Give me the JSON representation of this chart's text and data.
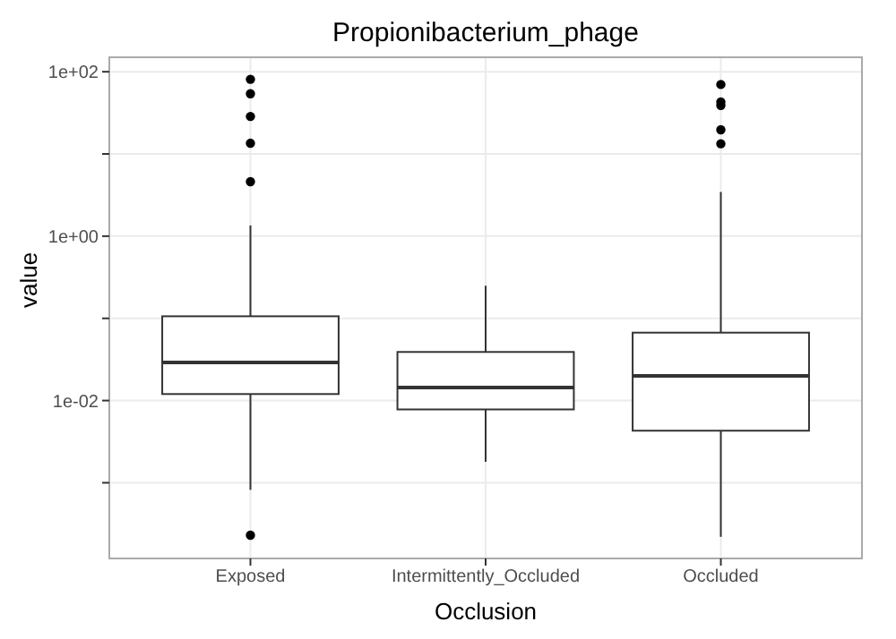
{
  "chart_data": {
    "type": "box",
    "title": "Propionibacterium_phage",
    "xlabel": "Occlusion",
    "ylabel": "value",
    "categories": [
      "Exposed",
      "Intermittently_Occluded",
      "Occluded"
    ],
    "boxes": [
      {
        "low": 0.00082,
        "q1": 0.012,
        "median": 0.029,
        "q3": 0.106,
        "high": 1.35,
        "outliers": [
          81,
          54,
          28.6,
          13.5,
          4.6,
          0.00023
        ]
      },
      {
        "low": 0.0018,
        "q1": 0.0078,
        "median": 0.0144,
        "q3": 0.039,
        "high": 0.25
      },
      {
        "low": 0.00022,
        "q1": 0.0043,
        "median": 0.02,
        "q3": 0.067,
        "high": 3.45,
        "outliers": [
          70,
          43,
          39,
          19.7,
          13.3
        ]
      }
    ],
    "log": true,
    "ylim": [
      0.00012,
      150
    ],
    "yticks": [
      {
        "value": 0.001,
        "label": null
      },
      {
        "value": 0.01,
        "label": "1e-02"
      },
      {
        "value": 0.1,
        "label": null
      },
      {
        "value": 1,
        "label": "1e+00"
      },
      {
        "value": 10,
        "label": null
      },
      {
        "value": 100,
        "label": "1e+02"
      }
    ],
    "grid": true
  }
}
